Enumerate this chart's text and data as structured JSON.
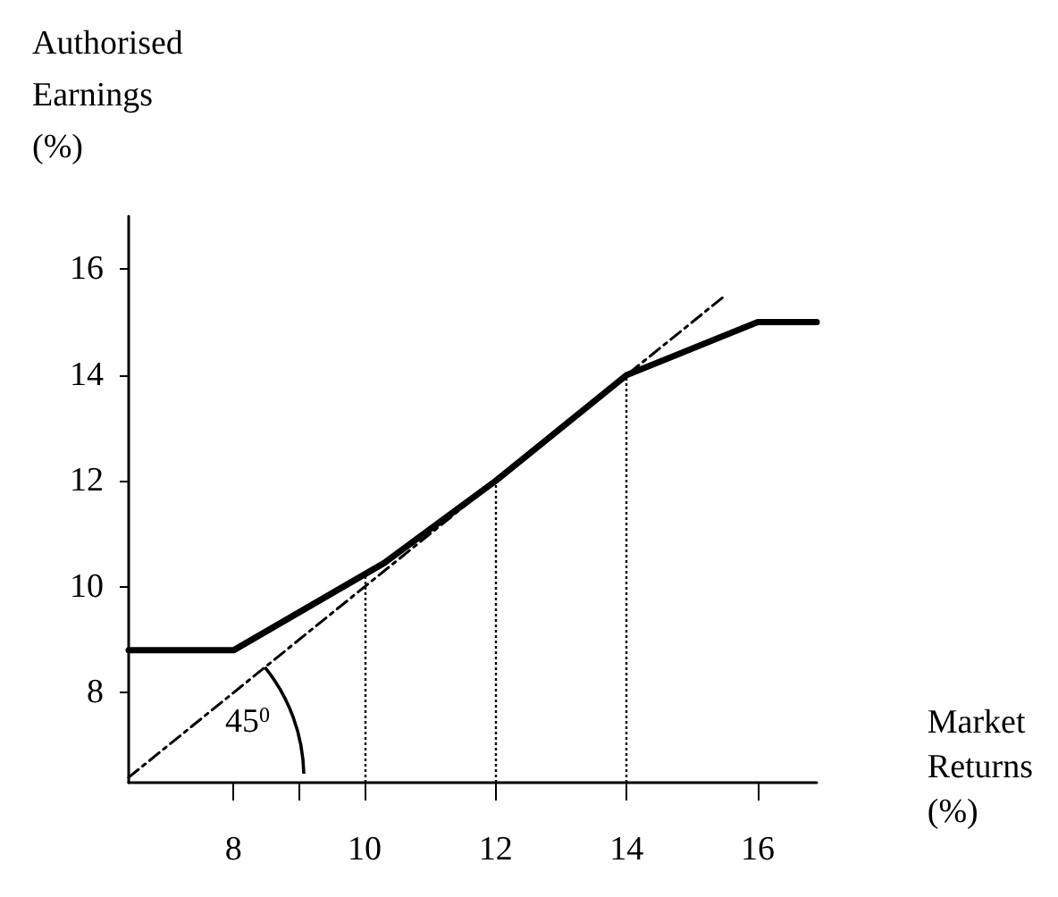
{
  "chart_data": {
    "type": "line",
    "xlabel": "Market\nReturns\n(%)",
    "ylabel": "Authorised\nEarnings\n(%)",
    "xlim": [
      6.4,
      16.9
    ],
    "ylim": [
      6.3,
      17
    ],
    "xticks": [
      8,
      {
        "value": 9,
        "label": null
      },
      10,
      12,
      14,
      16
    ],
    "yticks": [
      8,
      10,
      12,
      14,
      16
    ],
    "marker": "none",
    "series": [
      {
        "color": "#000000",
        "line_style": "solid",
        "x": [
          6.4,
          8,
          10.3,
          12,
          14,
          16,
          16.9
        ],
        "values": [
          8.8,
          8.8,
          10.45,
          12,
          14,
          15,
          15
        ]
      },
      {
        "color": "#000000",
        "line_style": "dashed",
        "x": [
          6.4,
          15.5
        ],
        "values": [
          6.4,
          15.5
        ]
      }
    ],
    "ref_lines": [
      {
        "axis": "x",
        "value": 10,
        "label": null,
        "line_style": "dotted",
        "color": "#000000"
      },
      {
        "axis": "x",
        "value": 12,
        "label": null,
        "line_style": "dotted",
        "color": "#000000"
      },
      {
        "axis": "x",
        "value": 14,
        "label": null,
        "line_style": "dotted",
        "color": "#000000"
      }
    ],
    "annotations": [
      "45$^{0}$"
    ]
  }
}
